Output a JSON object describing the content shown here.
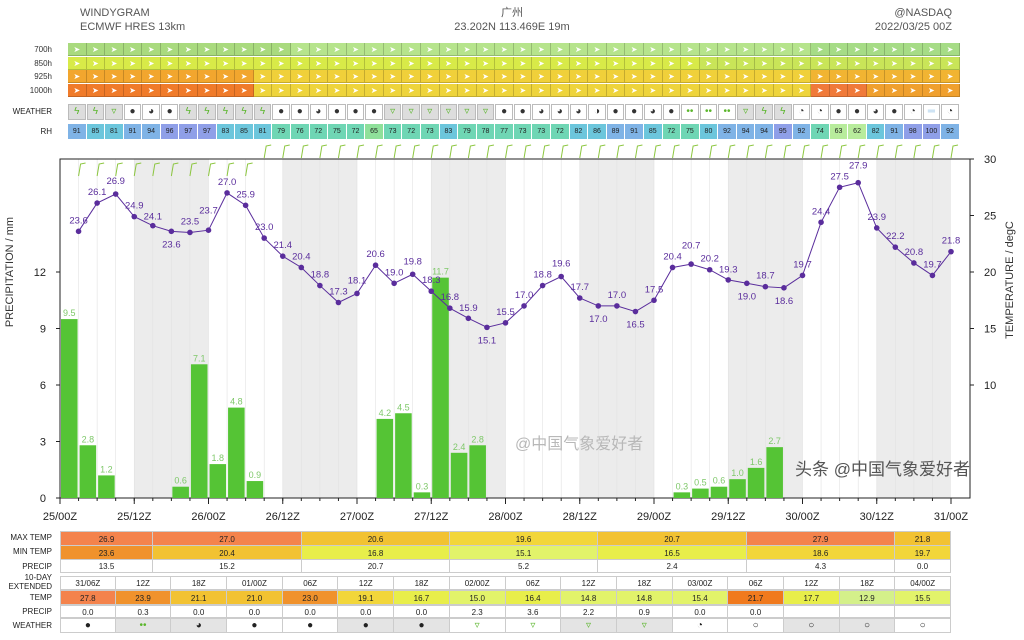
{
  "header": {
    "title": "WINDYGRAM",
    "model": "ECMWF HRES 13km",
    "location": "广州",
    "coords": "23.202N 113.469E 19m",
    "credit": "@NASDAQ",
    "run": "2022/03/25 00Z"
  },
  "levels": [
    "700h",
    "850h",
    "925h",
    "1000h"
  ],
  "weather_label": "WEATHER",
  "rh_label": "RH",
  "weather": [
    "thunder",
    "thunder",
    "rain",
    "overcast",
    "mostly-cloudy",
    "overcast",
    "thunder",
    "thunder",
    "thunder",
    "thunder",
    "thunder",
    "overcast",
    "overcast",
    "mostly-cloudy",
    "overcast",
    "overcast",
    "overcast",
    "rain",
    "rain",
    "rain",
    "rain",
    "rain",
    "rain",
    "overcast",
    "overcast",
    "mostly-cloudy",
    "mostly-cloudy",
    "mostly-cloudy",
    "half-cloudy",
    "overcast",
    "overcast",
    "mostly-cloudy",
    "overcast",
    "drizzle",
    "drizzle",
    "drizzle",
    "rain",
    "thunder",
    "thunder",
    "partly-cloudy",
    "partly-cloudy",
    "overcast",
    "overcast",
    "mostly-cloudy",
    "overcast",
    "partly-cloudy",
    "fog",
    "partly-cloudy"
  ],
  "rh": [
    91,
    85,
    81,
    91,
    94,
    96,
    97,
    97,
    83,
    85,
    81,
    79,
    76,
    72,
    75,
    72,
    65,
    73,
    72,
    73,
    83,
    79,
    78,
    77,
    73,
    73,
    72,
    82,
    86,
    89,
    91,
    85,
    72,
    75,
    80,
    92,
    94,
    94,
    95,
    92,
    74,
    63,
    62,
    82,
    91,
    98,
    100,
    92
  ],
  "icons": {
    "thunder": "ϟ",
    "rain": "▿",
    "overcast": "●",
    "mostly-cloudy": "◕",
    "half-cloudy": "◑",
    "partly-cloudy": "◔",
    "clear": "○",
    "drizzle": "••",
    "fog": "═"
  },
  "chart_data": {
    "type": "bar+line",
    "xticks": [
      "25/00Z",
      "25/12Z",
      "26/00Z",
      "26/12Z",
      "27/00Z",
      "27/12Z",
      "28/00Z",
      "28/12Z",
      "29/00Z",
      "29/12Z",
      "30/00Z",
      "30/12Z",
      "31/00Z"
    ],
    "interval_hours": 3,
    "shading": "night periods 12Z-00Z shaded grey",
    "precipitation": {
      "ylabel": "PRECIPITATION / mm",
      "ylim": [
        0,
        18
      ],
      "ticks": [
        0,
        3,
        6,
        9,
        12
      ],
      "color": "#55c435",
      "values": [
        9.5,
        2.8,
        1.2,
        0,
        0,
        0,
        0.6,
        7.1,
        1.8,
        4.8,
        0.9,
        0,
        0,
        0,
        0,
        0,
        0,
        4.2,
        4.5,
        0.3,
        11.7,
        2.4,
        2.8,
        0,
        0,
        0,
        0,
        0,
        0,
        0,
        0,
        0,
        0,
        0.3,
        0.5,
        0.6,
        1.0,
        1.6,
        2.7,
        0,
        0,
        0,
        0,
        0,
        0,
        0,
        0,
        0
      ]
    },
    "temperature": {
      "ylabel": "TEMPERATURE / degC",
      "ylim": [
        0,
        30
      ],
      "ticks": [
        10,
        15,
        20,
        25,
        30
      ],
      "color": "#5a2d9c",
      "values": [
        23.6,
        26.1,
        26.9,
        24.9,
        24.1,
        23.6,
        23.5,
        23.7,
        27.0,
        25.9,
        23.0,
        21.4,
        20.4,
        18.8,
        17.3,
        18.1,
        20.6,
        19.0,
        19.8,
        18.3,
        16.8,
        15.9,
        15.1,
        15.5,
        17.0,
        18.8,
        19.6,
        17.7,
        17.0,
        17.0,
        16.5,
        17.5,
        20.4,
        20.7,
        20.2,
        19.3,
        19.0,
        18.7,
        18.6,
        19.7,
        24.4,
        27.5,
        27.9,
        23.9,
        22.2,
        20.8,
        19.7,
        21.8
      ]
    }
  },
  "daily": {
    "max_label": "MAX TEMP",
    "min_label": "MIN TEMP",
    "precip_label": "PRECIP",
    "max": [
      "26.9",
      "27.0",
      "20.6",
      "19.6",
      "20.7",
      "27.9",
      "21.8"
    ],
    "min": [
      "23.6",
      "20.4",
      "16.8",
      "15.1",
      "16.5",
      "18.6",
      "19.7"
    ],
    "precip": [
      "13.5",
      "15.2",
      "20.7",
      "5.2",
      "2.4",
      "4.3",
      "0.0"
    ]
  },
  "extended": {
    "label": "10-DAY EXTENDED",
    "temp_label": "TEMP",
    "precip_label": "PRECIP",
    "weather_label": "WEATHER",
    "times": [
      "31/06Z",
      "12Z",
      "18Z",
      "01/00Z",
      "06Z",
      "12Z",
      "18Z",
      "02/00Z",
      "06Z",
      "12Z",
      "18Z",
      "03/00Z",
      "06Z",
      "12Z",
      "18Z",
      "04/00Z"
    ],
    "temp": [
      "27.8",
      "23.9",
      "21.1",
      "21.0",
      "23.0",
      "19.1",
      "16.7",
      "15.0",
      "16.4",
      "14.8",
      "14.8",
      "15.4",
      "21.7",
      "17.7",
      "12.9",
      "15.5"
    ],
    "precip": [
      "0.0",
      "0.3",
      "0.0",
      "0.0",
      "0.0",
      "0.0",
      "0.0",
      "2.3",
      "3.6",
      "2.2",
      "0.9",
      "0.0",
      "0.0",
      "",
      "",
      ""
    ],
    "weather": [
      "overcast",
      "drizzle",
      "mostly-cloudy",
      "overcast",
      "overcast",
      "overcast",
      "overcast",
      "rain",
      "rain",
      "rain",
      "rain",
      "partly-cloudy",
      "clear",
      "clear",
      "clear",
      "clear"
    ]
  },
  "watermarks": {
    "weibo": "@中国气象爱好者",
    "toutiao": "头条 @中国气象爱好者"
  }
}
